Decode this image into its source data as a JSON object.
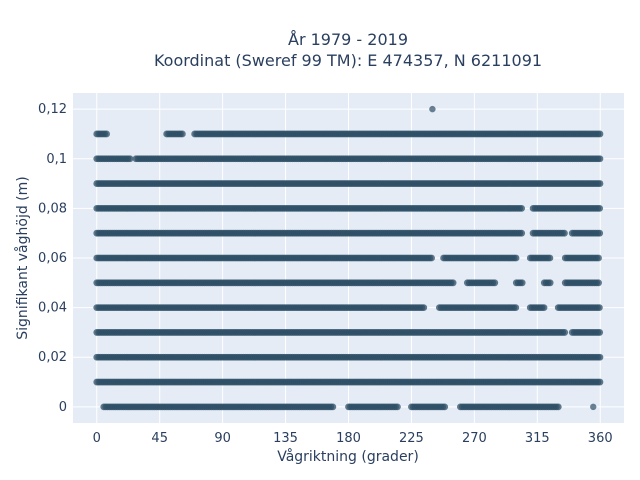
{
  "chart_data": {
    "type": "scatter",
    "title_line1": "År 1979 - 2019",
    "title_line2": "Koordinat (Sweref 99 TM): E 474357, N 6211091",
    "xlabel": "Vågriktning (grader)",
    "ylabel": "Signifikant våghöjd (m)",
    "xlim": [
      -17,
      377
    ],
    "ylim": [
      -0.0065,
      0.1265
    ],
    "x_ticks": [
      0,
      45,
      90,
      135,
      180,
      225,
      270,
      315,
      360
    ],
    "y_ticks": [
      {
        "value": 0,
        "label": "0"
      },
      {
        "value": 0.02,
        "label": "0,02"
      },
      {
        "value": 0.04,
        "label": "0,04"
      },
      {
        "value": 0.06,
        "label": "0,06"
      },
      {
        "value": 0.08,
        "label": "0,08"
      },
      {
        "value": 0.1,
        "label": "0,1"
      },
      {
        "value": 0.12,
        "label": "0,12"
      }
    ],
    "grid": true,
    "marker_color": "#2e4f66",
    "background_color": "#e5ecf6",
    "series": [
      {
        "y": 0.12,
        "runs": [
          [
            240,
            240
          ]
        ]
      },
      {
        "y": 0.11,
        "runs": [
          [
            0,
            8
          ],
          [
            50,
            62
          ],
          [
            70,
            360
          ]
        ]
      },
      {
        "y": 0.1,
        "runs": [
          [
            0,
            25
          ],
          [
            28,
            360
          ]
        ]
      },
      {
        "y": 0.09,
        "runs": [
          [
            0,
            360
          ]
        ]
      },
      {
        "y": 0.08,
        "runs": [
          [
            0,
            305
          ],
          [
            312,
            360
          ]
        ]
      },
      {
        "y": 0.07,
        "runs": [
          [
            0,
            305
          ],
          [
            312,
            335
          ],
          [
            340,
            360
          ]
        ]
      },
      {
        "y": 0.06,
        "runs": [
          [
            0,
            240
          ],
          [
            248,
            300
          ],
          [
            310,
            325
          ],
          [
            335,
            360
          ]
        ]
      },
      {
        "y": 0.05,
        "runs": [
          [
            0,
            255
          ],
          [
            265,
            285
          ],
          [
            300,
            305
          ],
          [
            320,
            325
          ],
          [
            335,
            360
          ]
        ]
      },
      {
        "y": 0.04,
        "runs": [
          [
            0,
            235
          ],
          [
            245,
            300
          ],
          [
            310,
            320
          ],
          [
            330,
            360
          ]
        ]
      },
      {
        "y": 0.03,
        "runs": [
          [
            0,
            335
          ],
          [
            340,
            360
          ]
        ]
      },
      {
        "y": 0.02,
        "runs": [
          [
            0,
            360
          ]
        ]
      },
      {
        "y": 0.01,
        "runs": [
          [
            0,
            360
          ]
        ]
      },
      {
        "y": 0,
        "runs": [
          [
            5,
            170
          ],
          [
            180,
            215
          ],
          [
            225,
            250
          ],
          [
            260,
            330
          ],
          [
            355,
            355
          ]
        ]
      }
    ]
  }
}
